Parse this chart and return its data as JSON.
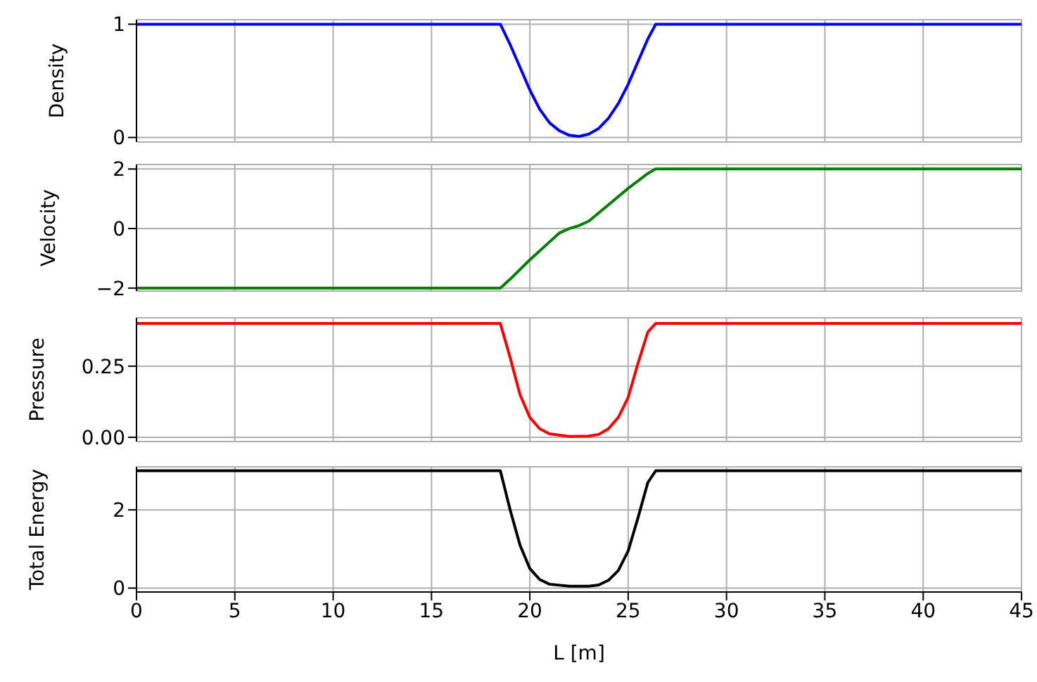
{
  "chart_data": [
    {
      "type": "line",
      "ylabel": "Density",
      "color": "#0000ff",
      "x": [
        0,
        18.5,
        19,
        19.5,
        20,
        20.5,
        21,
        21.5,
        22,
        22.5,
        23,
        23.5,
        24,
        24.5,
        25,
        25.5,
        26,
        26.4,
        45
      ],
      "values": [
        1,
        1,
        0.82,
        0.62,
        0.42,
        0.25,
        0.13,
        0.06,
        0.02,
        0.01,
        0.03,
        0.08,
        0.17,
        0.3,
        0.47,
        0.67,
        0.87,
        1,
        1
      ],
      "xlim": [
        0,
        45
      ],
      "xticks": [
        0,
        5,
        10,
        15,
        20,
        25,
        30,
        35,
        40,
        45
      ],
      "ylim": [
        -0.04,
        1.04
      ],
      "yticks": [
        0,
        1
      ],
      "grid": true,
      "tick_labels": "y",
      "marker": "none",
      "line_style": "solid"
    },
    {
      "type": "line",
      "ylabel": "Velocity",
      "color": "#008000",
      "x": [
        0,
        18.5,
        19,
        20,
        21,
        21.5,
        22,
        22.5,
        23,
        24,
        25,
        26,
        26.4,
        45
      ],
      "values": [
        -2,
        -2,
        -1.7,
        -1.05,
        -0.45,
        -0.15,
        0,
        0.1,
        0.25,
        0.8,
        1.35,
        1.85,
        2,
        2
      ],
      "xlim": [
        0,
        45
      ],
      "xticks": [
        0,
        5,
        10,
        15,
        20,
        25,
        30,
        35,
        40,
        45
      ],
      "ylim": [
        -2.1,
        2.15
      ],
      "yticks": [
        {
          "value": -2,
          "label": "−2"
        },
        0,
        2
      ],
      "grid": true,
      "tick_labels": "y",
      "marker": "none",
      "line_style": "solid"
    },
    {
      "type": "line",
      "ylabel": "Pressure",
      "color": "#ff0000",
      "x": [
        0,
        18.5,
        19,
        19.5,
        20,
        20.5,
        21,
        22,
        23,
        23.5,
        24,
        24.5,
        25,
        25.5,
        26,
        26.4,
        45
      ],
      "values": [
        0.4,
        0.4,
        0.28,
        0.15,
        0.07,
        0.03,
        0.012,
        0.003,
        0.004,
        0.01,
        0.03,
        0.07,
        0.14,
        0.26,
        0.37,
        0.4,
        0.4
      ],
      "xlim": [
        0,
        45
      ],
      "xticks": [
        0,
        5,
        10,
        15,
        20,
        25,
        30,
        35,
        40,
        45
      ],
      "ylim": [
        -0.015,
        0.42
      ],
      "yticks": [
        {
          "value": 0,
          "label": "0.00"
        },
        0.25
      ],
      "grid": true,
      "tick_labels": "y",
      "marker": "none",
      "line_style": "solid"
    },
    {
      "type": "line",
      "ylabel": "Total Energy",
      "xlabel": "L [m]",
      "color": "#000000",
      "x": [
        0,
        18.5,
        19,
        19.5,
        20,
        20.5,
        21,
        22,
        23,
        23.5,
        24,
        24.5,
        25,
        25.5,
        26,
        26.4,
        45
      ],
      "values": [
        3,
        3,
        2,
        1.1,
        0.5,
        0.22,
        0.1,
        0.05,
        0.05,
        0.08,
        0.2,
        0.45,
        0.95,
        1.8,
        2.7,
        3,
        3
      ],
      "xlim": [
        0,
        45
      ],
      "xticks": [
        0,
        5,
        10,
        15,
        20,
        25,
        30,
        35,
        40,
        45
      ],
      "ylim": [
        -0.1,
        3.1
      ],
      "yticks": [
        0,
        2
      ],
      "grid": true,
      "marker": "none",
      "line_style": "solid"
    }
  ]
}
